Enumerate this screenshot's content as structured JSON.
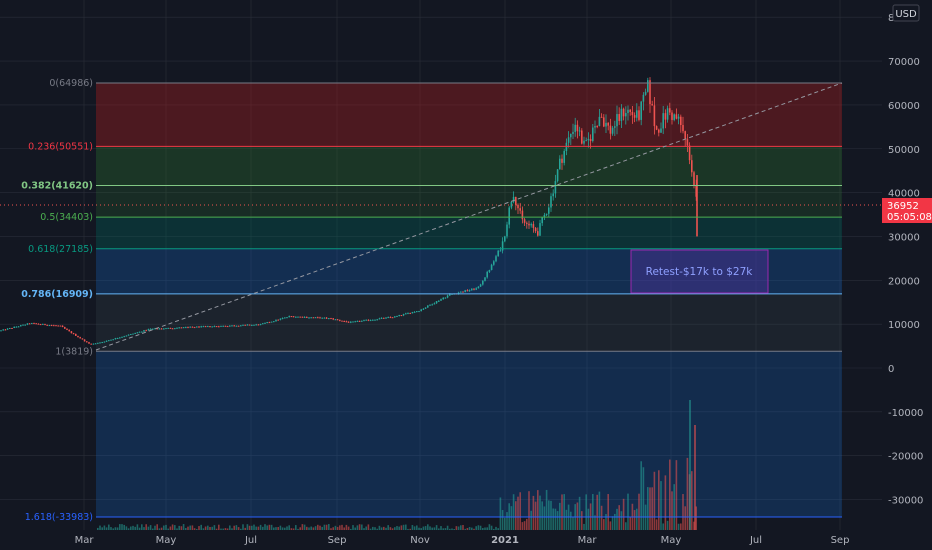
{
  "chart_data": {
    "type": "candlestick",
    "currency_badge": "USD",
    "x_ticks": [
      "Mar",
      "May",
      "Jul",
      "Sep",
      "Nov",
      "2021",
      "Mar",
      "May",
      "Jul",
      "Sep"
    ],
    "y_ticks": [
      "80000",
      "70000",
      "60000",
      "50000",
      "40000",
      "30000",
      "20000",
      "10000",
      "0",
      "-10000",
      "-20000",
      "-30000"
    ],
    "last_price": "36952",
    "countdown": "05:05:08",
    "fib_levels": [
      {
        "label": "0(64986)",
        "value": 64986,
        "color": "#787b86",
        "bold": false
      },
      {
        "label": "0.236(50551)",
        "value": 50551,
        "color": "#f23645",
        "bold": false
      },
      {
        "label": "0.382(41620)",
        "value": 41620,
        "color": "#81c784",
        "bold": true
      },
      {
        "label": "0.5(34403)",
        "value": 34403,
        "color": "#4caf50",
        "bold": false
      },
      {
        "label": "0.618(27185)",
        "value": 27185,
        "color": "#089981",
        "bold": false
      },
      {
        "label": "0.786(16909)",
        "value": 16909,
        "color": "#64b5f6",
        "bold": true
      },
      {
        "label": "1(3819)",
        "value": 3819,
        "color": "#787b86",
        "bold": false
      },
      {
        "label": "1.618(-33983)",
        "value": -33983,
        "color": "#2962ff",
        "bold": false
      }
    ],
    "annotation": {
      "text": "Retest-$17k to $27k",
      "from": 17000,
      "to": 27000
    },
    "colors": {
      "up": "#26a69a",
      "down": "#ef5350",
      "background": "#131722",
      "grid": "#2a2e39"
    }
  }
}
